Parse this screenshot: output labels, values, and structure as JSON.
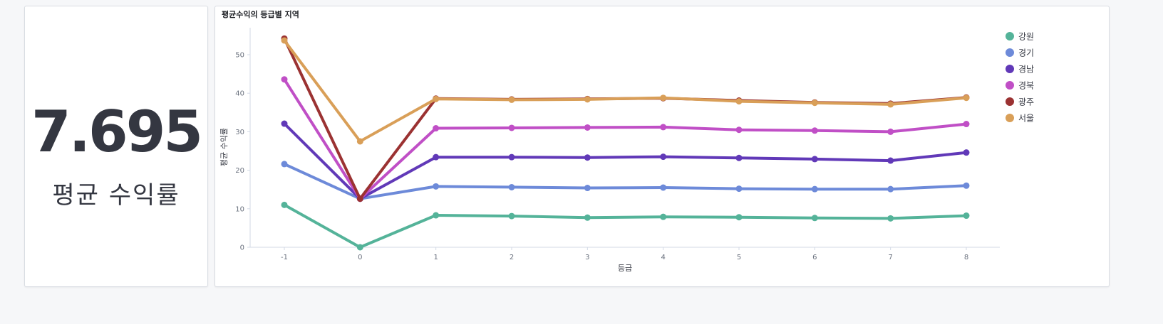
{
  "metric": {
    "value": "7.695",
    "label": "평균 수익률"
  },
  "chart_data": {
    "type": "line",
    "title": "평균수익의 등급별 지역",
    "xlabel": "등급",
    "ylabel": "평균 수익률",
    "x": [
      -1,
      0,
      1,
      2,
      3,
      4,
      5,
      6,
      7,
      8
    ],
    "x_ticks": [
      "-1",
      "0",
      "1",
      "2",
      "3",
      "4",
      "5",
      "6",
      "7",
      "8"
    ],
    "y_ticks": [
      "0",
      "10",
      "20",
      "30",
      "40",
      "50"
    ],
    "ylim": [
      0,
      57
    ],
    "legend_position": "top-right",
    "series": [
      {
        "name": "강원",
        "color": "#54b399",
        "values": [
          11.0,
          0.0,
          8.3,
          8.1,
          7.7,
          7.9,
          7.8,
          7.6,
          7.5,
          8.2
        ]
      },
      {
        "name": "경기",
        "color": "#6d8ad9",
        "values": [
          21.6,
          12.6,
          15.8,
          15.6,
          15.4,
          15.5,
          15.2,
          15.1,
          15.1,
          16.0
        ]
      },
      {
        "name": "경남",
        "color": "#6139b8",
        "values": [
          32.1,
          12.6,
          23.4,
          23.4,
          23.3,
          23.5,
          23.2,
          22.9,
          22.5,
          24.6
        ]
      },
      {
        "name": "경북",
        "color": "#c04fc6",
        "values": [
          43.6,
          12.6,
          30.9,
          31.0,
          31.1,
          31.2,
          30.5,
          30.3,
          30.0,
          32.0
        ]
      },
      {
        "name": "광주",
        "color": "#9b3232",
        "values": [
          54.2,
          12.6,
          38.6,
          38.4,
          38.5,
          38.7,
          38.1,
          37.6,
          37.3,
          38.9
        ]
      },
      {
        "name": "서울",
        "color": "#d99f58",
        "values": [
          53.7,
          27.5,
          38.5,
          38.3,
          38.4,
          38.8,
          37.9,
          37.5,
          37.1,
          38.8
        ]
      }
    ]
  }
}
